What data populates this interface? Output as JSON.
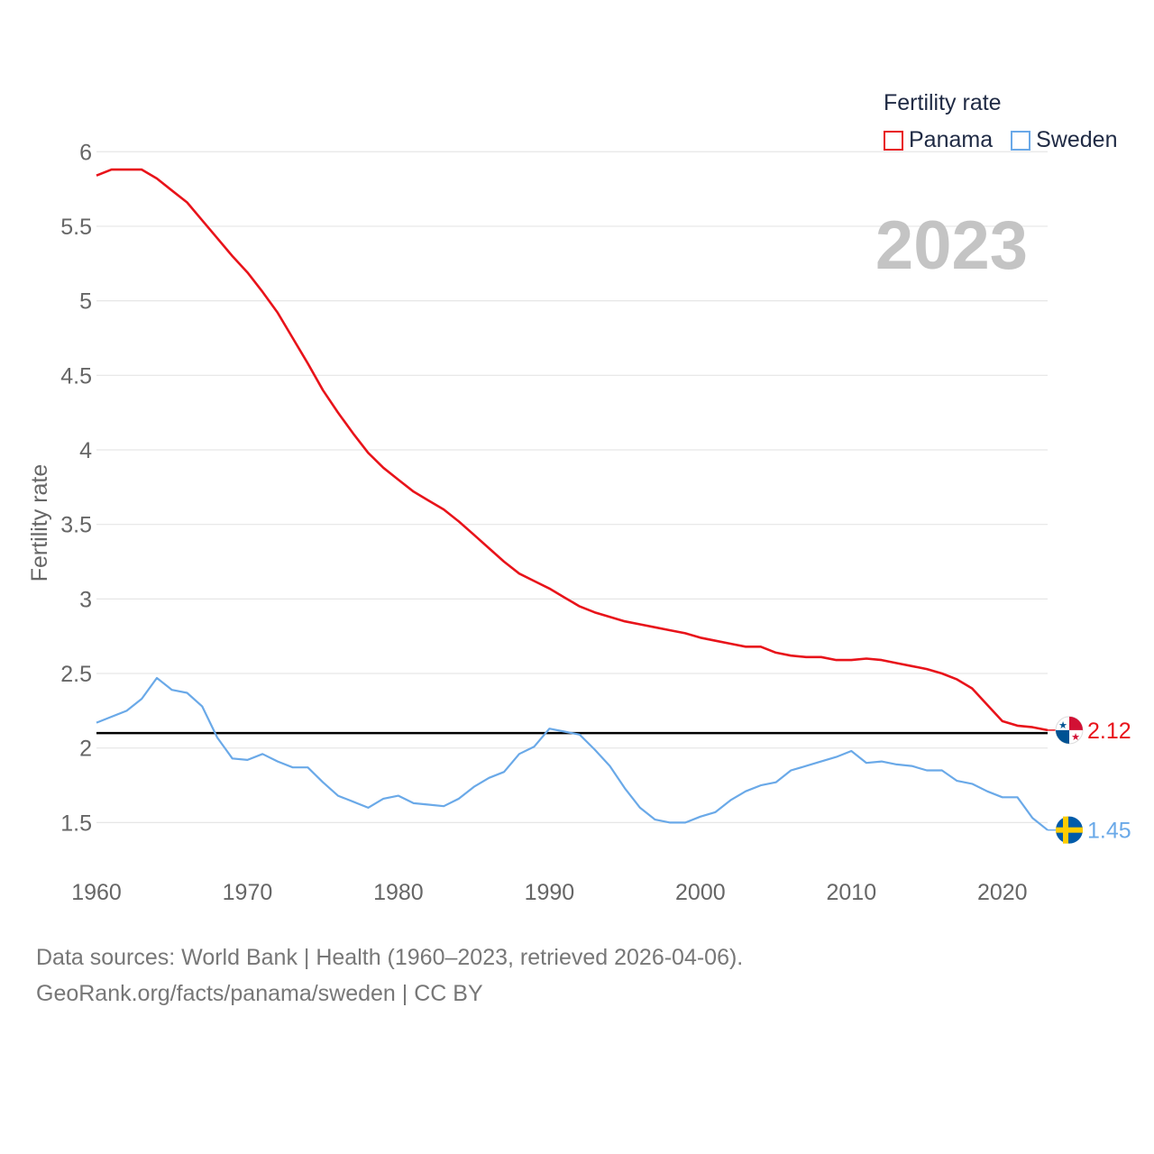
{
  "chart_data": {
    "type": "line",
    "legend_title": "Fertility rate",
    "ylabel": "Fertility rate",
    "xlabel": "",
    "year_label": "2023",
    "xlim": [
      1960,
      2023
    ],
    "ylim": [
      1.2,
      6.05
    ],
    "x_ticks": [
      "1960",
      "1970",
      "1980",
      "1990",
      "2000",
      "2010",
      "2020"
    ],
    "y_ticks": [
      "1.5",
      "2",
      "2.5",
      "3",
      "3.5",
      "4",
      "4.5",
      "5",
      "5.5",
      "6"
    ],
    "reference_line": 2.1,
    "x": [
      1960,
      1961,
      1962,
      1963,
      1964,
      1965,
      1966,
      1967,
      1968,
      1969,
      1970,
      1971,
      1972,
      1973,
      1974,
      1975,
      1976,
      1977,
      1978,
      1979,
      1980,
      1981,
      1982,
      1983,
      1984,
      1985,
      1986,
      1987,
      1988,
      1989,
      1990,
      1991,
      1992,
      1993,
      1994,
      1995,
      1996,
      1997,
      1998,
      1999,
      2000,
      2001,
      2002,
      2003,
      2004,
      2005,
      2006,
      2007,
      2008,
      2009,
      2010,
      2011,
      2012,
      2013,
      2014,
      2015,
      2016,
      2017,
      2018,
      2019,
      2020,
      2021,
      2022,
      2023
    ],
    "series": [
      {
        "name": "Panama",
        "color": "#e8131a",
        "end_label": "2.12",
        "values": [
          5.84,
          5.88,
          5.88,
          5.88,
          5.82,
          5.74,
          5.66,
          5.54,
          5.42,
          5.3,
          5.19,
          5.06,
          4.92,
          4.75,
          4.58,
          4.4,
          4.25,
          4.11,
          3.98,
          3.88,
          3.8,
          3.72,
          3.66,
          3.6,
          3.52,
          3.43,
          3.34,
          3.25,
          3.17,
          3.12,
          3.07,
          3.01,
          2.95,
          2.91,
          2.88,
          2.85,
          2.83,
          2.81,
          2.79,
          2.77,
          2.74,
          2.72,
          2.7,
          2.68,
          2.68,
          2.64,
          2.62,
          2.61,
          2.61,
          2.59,
          2.59,
          2.6,
          2.59,
          2.57,
          2.55,
          2.53,
          2.5,
          2.46,
          2.4,
          2.29,
          2.18,
          2.15,
          2.14,
          2.12
        ]
      },
      {
        "name": "Sweden",
        "color": "#6aa9e8",
        "end_label": "1.45",
        "values": [
          2.17,
          2.21,
          2.25,
          2.33,
          2.47,
          2.39,
          2.37,
          2.28,
          2.07,
          1.93,
          1.92,
          1.96,
          1.91,
          1.87,
          1.87,
          1.77,
          1.68,
          1.64,
          1.6,
          1.66,
          1.68,
          1.63,
          1.62,
          1.61,
          1.66,
          1.74,
          1.8,
          1.84,
          1.96,
          2.01,
          2.13,
          2.11,
          2.09,
          1.99,
          1.88,
          1.73,
          1.6,
          1.52,
          1.5,
          1.5,
          1.54,
          1.57,
          1.65,
          1.71,
          1.75,
          1.77,
          1.85,
          1.88,
          1.91,
          1.94,
          1.98,
          1.9,
          1.91,
          1.89,
          1.88,
          1.85,
          1.85,
          1.78,
          1.76,
          1.71,
          1.67,
          1.67,
          1.53,
          1.45
        ]
      }
    ]
  },
  "source": {
    "line1": "Data sources: World Bank | Health (1960–2023, retrieved 2026-04-06).",
    "line2": "GeoRank.org/facts/panama/sweden | CC BY"
  }
}
